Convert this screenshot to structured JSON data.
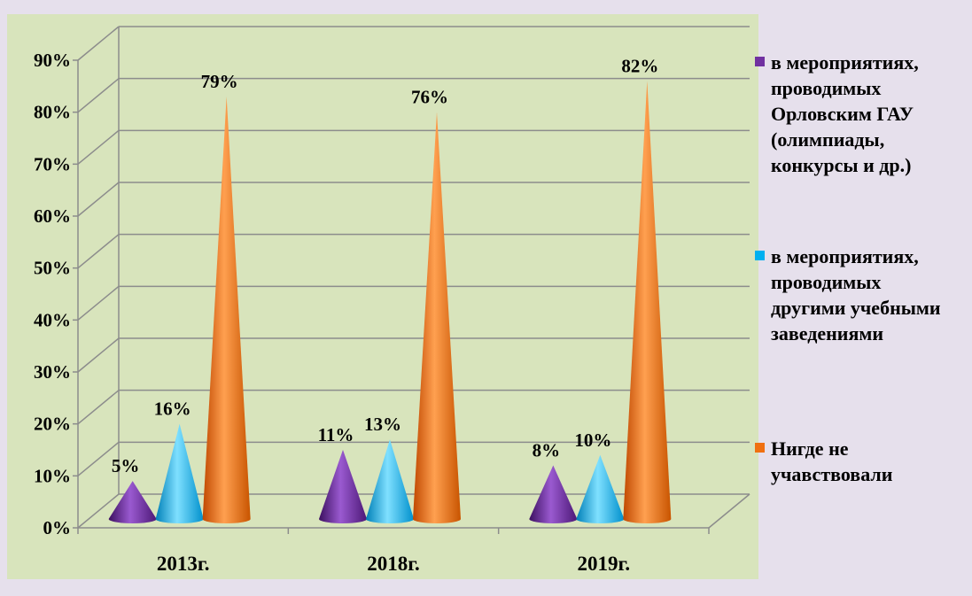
{
  "chart_data": {
    "type": "bar",
    "title": "",
    "xlabel": "",
    "ylabel": "",
    "ylim": [
      0,
      0.9
    ],
    "yticks": [
      "0%",
      "10%",
      "20%",
      "30%",
      "40%",
      "50%",
      "60%",
      "70%",
      "80%",
      "90%"
    ],
    "categories": [
      "2013г.",
      "2018г.",
      "2019г."
    ],
    "legend_position": "right",
    "grid": true,
    "series": [
      {
        "name": "в мероприятиях, проводимых Орловским ГАУ (олимпиады, конкурсы и др.)",
        "color": "#7030a0",
        "values": [
          0.05,
          0.11,
          0.08
        ],
        "labels": [
          "5%",
          "11%",
          "8%"
        ]
      },
      {
        "name": "в мероприятиях, проводимых другими учебными заведениями",
        "color": "#00b0f0",
        "values": [
          0.16,
          0.13,
          0.1
        ],
        "labels": [
          "16%",
          "13%",
          "10%"
        ]
      },
      {
        "name": "Нигде не учавствовали",
        "color": "#f07010",
        "values": [
          0.79,
          0.76,
          0.82
        ],
        "labels": [
          "79%",
          "76%",
          "82%"
        ]
      }
    ]
  },
  "legend": [
    {
      "text": "в мероприятиях,\nпроводимых\nОрловским ГАУ\n(олимпиады,\nконкурсы и др.)"
    },
    {
      "text": "в мероприятиях,\nпроводимых\nдругими учебными\nзаведениями"
    },
    {
      "text": "Нигде не\nучавствовали"
    }
  ]
}
